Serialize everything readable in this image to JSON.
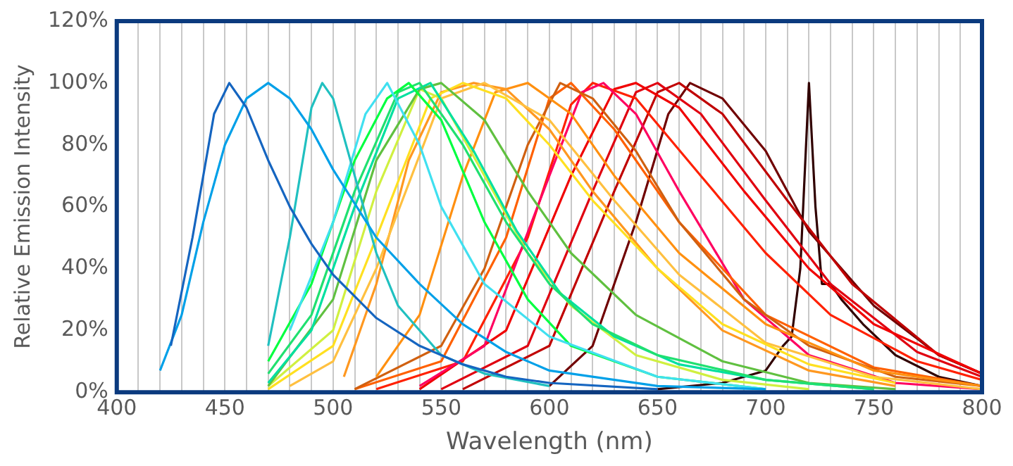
{
  "chart_data": {
    "type": "line",
    "xlabel": "Wavelength (nm)",
    "ylabel": "Relative Emission Intensity",
    "xlim": [
      400,
      800
    ],
    "ylim": [
      0,
      120
    ],
    "grid": "x",
    "marker": "none",
    "line_style": "solid",
    "xticks": [
      400,
      {
        "value": 410,
        "label": null
      },
      {
        "value": 420,
        "label": null
      },
      {
        "value": 430,
        "label": null
      },
      {
        "value": 440,
        "label": null
      },
      450,
      {
        "value": 460,
        "label": null
      },
      {
        "value": 470,
        "label": null
      },
      {
        "value": 480,
        "label": null
      },
      {
        "value": 490,
        "label": null
      },
      500,
      {
        "value": 510,
        "label": null
      },
      {
        "value": 520,
        "label": null
      },
      {
        "value": 530,
        "label": null
      },
      {
        "value": 540,
        "label": null
      },
      550,
      {
        "value": 560,
        "label": null
      },
      {
        "value": 570,
        "label": null
      },
      {
        "value": 580,
        "label": null
      },
      {
        "value": 590,
        "label": null
      },
      600,
      {
        "value": 610,
        "label": null
      },
      {
        "value": 620,
        "label": null
      },
      {
        "value": 630,
        "label": null
      },
      {
        "value": 640,
        "label": null
      },
      650,
      {
        "value": 660,
        "label": null
      },
      {
        "value": 670,
        "label": null
      },
      {
        "value": 680,
        "label": null
      },
      {
        "value": 690,
        "label": null
      },
      700,
      {
        "value": 710,
        "label": null
      },
      {
        "value": 720,
        "label": null
      },
      {
        "value": 730,
        "label": null
      },
      {
        "value": 740,
        "label": null
      },
      750,
      {
        "value": 760,
        "label": null
      },
      {
        "value": 770,
        "label": null
      },
      {
        "value": 780,
        "label": null
      },
      {
        "value": 790,
        "label": null
      },
      800
    ],
    "yticks": [
      {
        "value": 0,
        "label": "0%"
      },
      {
        "value": 20,
        "label": "20%"
      },
      {
        "value": 40,
        "label": "40%"
      },
      {
        "value": 60,
        "label": "60%"
      },
      {
        "value": 80,
        "label": "80%"
      },
      {
        "value": 100,
        "label": "100%"
      },
      {
        "value": 120,
        "label": "120%"
      }
    ],
    "series": [
      {
        "color": "#1565c0",
        "x": [
          425,
          435,
          445,
          452,
          460,
          470,
          480,
          490,
          500,
          520,
          540,
          560,
          580,
          600,
          650
        ],
        "values": [
          15,
          50,
          90,
          100,
          92,
          75,
          60,
          48,
          38,
          24,
          15,
          9,
          5,
          3,
          1
        ]
      },
      {
        "color": "#00a0e8",
        "x": [
          420,
          430,
          440,
          450,
          460,
          470,
          480,
          490,
          500,
          520,
          540,
          560,
          580,
          600,
          650,
          700
        ],
        "values": [
          7,
          25,
          55,
          80,
          95,
          100,
          95,
          85,
          72,
          50,
          35,
          22,
          13,
          7,
          2,
          1
        ]
      },
      {
        "color": "#20c0c0",
        "x": [
          470,
          480,
          490,
          495,
          500,
          510,
          520,
          530,
          550,
          570,
          600
        ],
        "values": [
          15,
          50,
          92,
          100,
          95,
          70,
          45,
          28,
          12,
          6,
          2
        ]
      },
      {
        "color": "#40e0f0",
        "x": [
          480,
          500,
          515,
          525,
          540,
          550,
          570,
          600,
          650,
          700
        ],
        "values": [
          20,
          55,
          90,
          100,
          80,
          60,
          35,
          18,
          5,
          1
        ]
      },
      {
        "color": "#00ff40",
        "x": [
          470,
          490,
          510,
          525,
          535,
          550,
          570,
          590,
          610,
          650,
          700
        ],
        "values": [
          10,
          35,
          75,
          95,
          100,
          88,
          55,
          30,
          15,
          5,
          1
        ]
      },
      {
        "color": "#20e070",
        "x": [
          470,
          490,
          510,
          530,
          540,
          560,
          580,
          600,
          620,
          650,
          700,
          750
        ],
        "values": [
          6,
          25,
          65,
          97,
          100,
          80,
          55,
          35,
          22,
          12,
          4,
          1
        ]
      },
      {
        "color": "#00e0a0",
        "x": [
          470,
          490,
          510,
          530,
          545,
          565,
          585,
          605,
          630,
          660,
          700,
          750
        ],
        "values": [
          3,
          20,
          60,
          95,
          100,
          78,
          52,
          32,
          18,
          9,
          4,
          1
        ]
      },
      {
        "color": "#60c040",
        "x": [
          470,
          500,
          520,
          540,
          550,
          570,
          590,
          610,
          640,
          680,
          720,
          760
        ],
        "values": [
          2,
          30,
          75,
          98,
          100,
          88,
          65,
          45,
          25,
          10,
          3,
          1
        ]
      },
      {
        "color": "#d0f040",
        "x": [
          470,
          500,
          520,
          540,
          550,
          570,
          590,
          610,
          640,
          680,
          720
        ],
        "values": [
          2,
          20,
          65,
          98,
          95,
          70,
          45,
          28,
          12,
          4,
          1
        ]
      },
      {
        "color": "#ffe020",
        "x": [
          470,
          500,
          520,
          545,
          560,
          580,
          600,
          620,
          650,
          680,
          720,
          760
        ],
        "values": [
          1,
          15,
          50,
          95,
          100,
          95,
          80,
          62,
          40,
          22,
          9,
          3
        ]
      },
      {
        "color": "#ffc040",
        "x": [
          480,
          500,
          520,
          550,
          570,
          600,
          630,
          660,
          700,
          750,
          800
        ],
        "values": [
          2,
          10,
          40,
          95,
          100,
          88,
          62,
          38,
          16,
          5,
          1
        ]
      },
      {
        "color": "#ff9820",
        "x": [
          505,
          520,
          535,
          550,
          565,
          580,
          600,
          620,
          650,
          680,
          720,
          760
        ],
        "values": [
          5,
          35,
          75,
          97,
          100,
          98,
          85,
          65,
          40,
          20,
          7,
          2
        ]
      },
      {
        "color": "#ff9010",
        "x": [
          520,
          540,
          560,
          575,
          590,
          610,
          630,
          660,
          700,
          750,
          800
        ],
        "values": [
          5,
          25,
          70,
          97,
          100,
          90,
          70,
          45,
          22,
          7,
          2
        ]
      },
      {
        "color": "#d06010",
        "x": [
          510,
          550,
          570,
          590,
          605,
          620,
          640,
          660,
          690,
          720,
          760,
          800
        ],
        "values": [
          1,
          15,
          40,
          80,
          100,
          95,
          78,
          55,
          30,
          15,
          5,
          2
        ]
      },
      {
        "color": "#ff6000",
        "x": [
          510,
          550,
          580,
          600,
          610,
          630,
          660,
          700,
          750,
          800
        ],
        "values": [
          1,
          10,
          50,
          95,
          100,
          85,
          55,
          25,
          8,
          2
        ]
      },
      {
        "color": "#ff0060",
        "x": [
          540,
          570,
          600,
          615,
          625,
          640,
          660,
          690,
          720,
          760,
          800
        ],
        "values": [
          2,
          15,
          70,
          97,
          100,
          90,
          65,
          30,
          12,
          3,
          1
        ]
      },
      {
        "color": "#ff2000",
        "x": [
          520,
          560,
          590,
          610,
          620,
          640,
          670,
          700,
          730,
          770,
          800
        ],
        "values": [
          1,
          10,
          50,
          93,
          100,
          95,
          70,
          45,
          25,
          10,
          4
        ]
      },
      {
        "color": "#f00000",
        "x": [
          540,
          580,
          610,
          630,
          640,
          660,
          690,
          720,
          750,
          800
        ],
        "values": [
          1,
          20,
          70,
          98,
          100,
          92,
          65,
          40,
          22,
          6
        ]
      },
      {
        "color": "#e00010",
        "x": [
          550,
          590,
          620,
          640,
          650,
          670,
          700,
          730,
          770,
          800
        ],
        "values": [
          1,
          15,
          65,
          97,
          100,
          90,
          62,
          35,
          13,
          5
        ]
      },
      {
        "color": "#c00000",
        "x": [
          560,
          600,
          630,
          650,
          660,
          680,
          710,
          740,
          780,
          800
        ],
        "values": [
          1,
          15,
          65,
          97,
          100,
          90,
          62,
          35,
          12,
          6
        ]
      },
      {
        "color": "#700000",
        "x": [
          600,
          620,
          640,
          655,
          665,
          680,
          700,
          720,
          750,
          780,
          800
        ],
        "values": [
          2,
          15,
          55,
          90,
          100,
          95,
          78,
          52,
          28,
          12,
          6
        ]
      },
      {
        "color": "#300000",
        "x": [
          650,
          680,
          700,
          708,
          712,
          716,
          720,
          723,
          726,
          730,
          735,
          745,
          760,
          780,
          800
        ],
        "values": [
          1,
          3,
          7,
          15,
          18,
          40,
          100,
          60,
          35,
          35,
          30,
          22,
          12,
          5,
          2
        ]
      }
    ]
  }
}
